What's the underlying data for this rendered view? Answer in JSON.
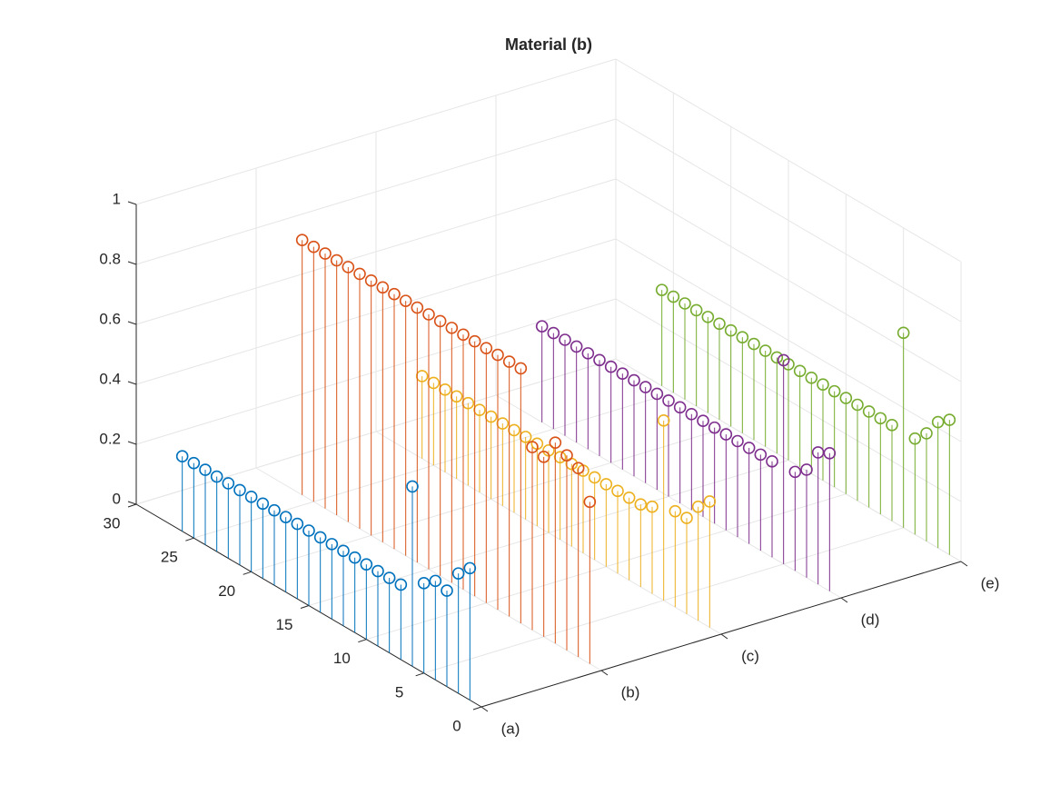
{
  "chart_data": {
    "type": "stem3",
    "title": "Material (b)",
    "categories": [
      "(a)",
      "(b)",
      "(c)",
      "(d)",
      "(e)"
    ],
    "x": [
      1,
      2,
      3,
      4,
      5,
      6,
      7,
      8,
      9,
      10,
      11,
      12,
      13,
      14,
      15,
      16,
      17,
      18,
      19,
      20,
      21,
      22,
      23,
      24,
      25,
      26
    ],
    "series": [
      {
        "color": "#0072BD",
        "values": [
          0.44,
          0.4,
          0.32,
          0.33,
          0.3,
          0.6,
          0.25,
          0.25,
          0.25,
          0.25,
          0.25,
          0.25,
          0.25,
          0.25,
          0.25,
          0.25,
          0.25,
          0.25,
          0.25,
          0.25,
          0.25,
          0.25,
          0.25,
          0.25,
          0.25,
          0.25
        ]
      },
      {
        "color": "#D95319",
        "values": [
          0.54,
          0.63,
          0.65,
          0.67,
          0.6,
          0.61,
          0.85,
          0.85,
          0.85,
          0.85,
          0.85,
          0.85,
          0.85,
          0.85,
          0.85,
          0.85,
          0.85,
          0.85,
          0.85,
          0.85,
          0.85,
          0.85,
          0.85,
          0.85,
          0.85,
          0.85
        ]
      },
      {
        "color": "#EDB120",
        "values": [
          0.42,
          0.38,
          0.32,
          0.32,
          0.6,
          0.29,
          0.275,
          0.275,
          0.275,
          0.275,
          0.275,
          0.275,
          0.275,
          0.275,
          0.275,
          0.275,
          0.275,
          0.275,
          0.275,
          0.275,
          0.275,
          0.275,
          0.275,
          0.275,
          0.275,
          0.275
        ]
      },
      {
        "color": "#7E2F8E",
        "values": [
          0.46,
          0.44,
          0.36,
          0.33,
          0.68,
          0.32,
          0.32,
          0.32,
          0.32,
          0.32,
          0.32,
          0.32,
          0.32,
          0.32,
          0.32,
          0.32,
          0.32,
          0.32,
          0.32,
          0.32,
          0.32,
          0.32,
          0.32,
          0.32,
          0.32,
          0.32
        ]
      },
      {
        "color": "#77AC30",
        "values": [
          0.45,
          0.42,
          0.36,
          0.32,
          0.65,
          0.32,
          0.32,
          0.32,
          0.32,
          0.32,
          0.32,
          0.32,
          0.32,
          0.32,
          0.32,
          0.32,
          0.32,
          0.32,
          0.32,
          0.32,
          0.32,
          0.32,
          0.32,
          0.32,
          0.32,
          0.32
        ]
      }
    ],
    "ylim": [
      0,
      30
    ],
    "yticks": [
      0,
      5,
      10,
      15,
      20,
      25,
      30
    ],
    "zlim": [
      0,
      1
    ],
    "zticks": [
      0,
      0.2,
      0.4,
      0.6,
      0.8,
      1
    ],
    "grid": true
  }
}
